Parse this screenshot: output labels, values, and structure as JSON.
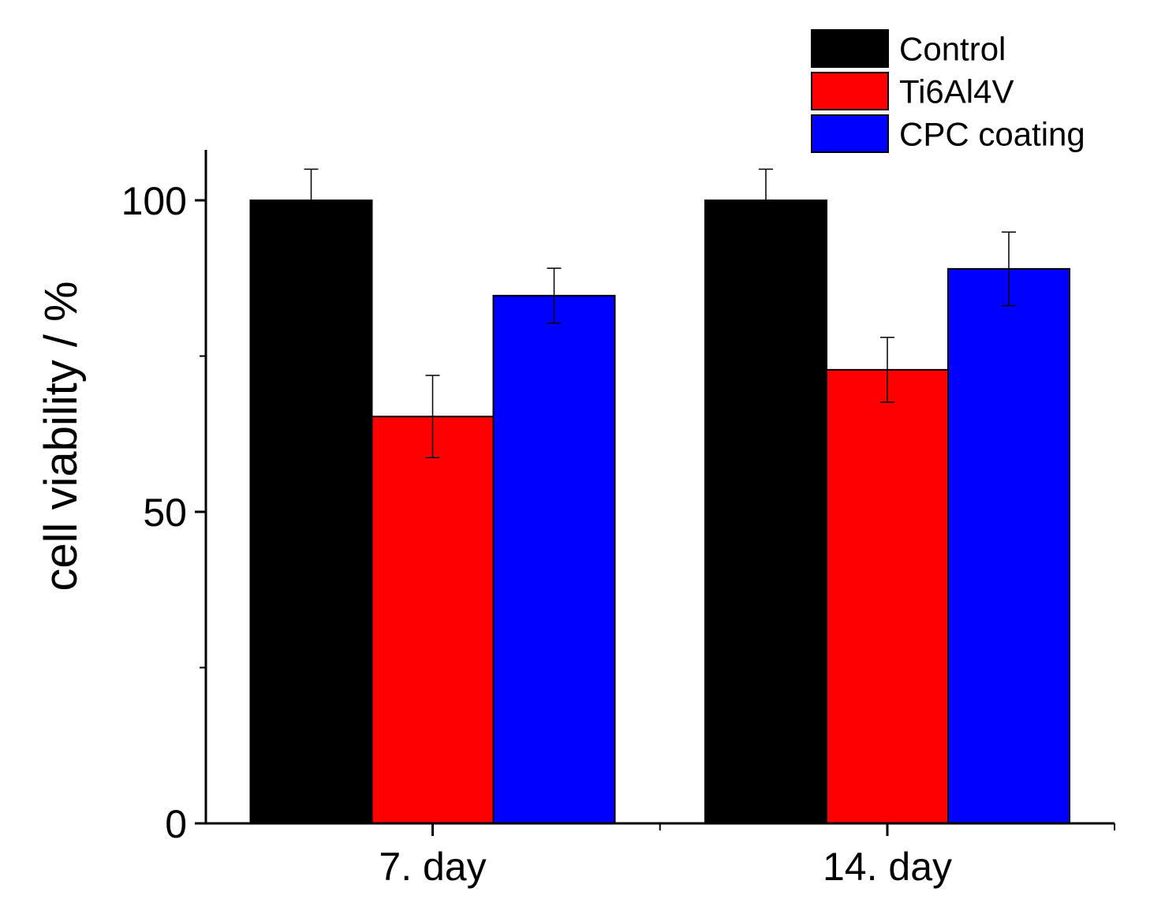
{
  "chart_data": {
    "type": "bar",
    "title": "",
    "xlabel": "",
    "ylabel": "cell viability / %",
    "categories": [
      "7. day",
      "14. day"
    ],
    "series": [
      {
        "name": "Control",
        "color": "#000000",
        "values": [
          100,
          100
        ],
        "errors": [
          5,
          5
        ]
      },
      {
        "name": "Ti6Al4V",
        "color": "#ff0000",
        "values": [
          65.3,
          72.8
        ],
        "errors": [
          6.6,
          5.2
        ]
      },
      {
        "name": "CPC coating",
        "color": "#0000ff",
        "values": [
          84.7,
          89
        ],
        "errors": [
          4.4,
          5.9
        ]
      }
    ],
    "ylim": [
      0,
      108
    ],
    "yticks_major": [
      0,
      50,
      100
    ],
    "yticks_minor": [
      25,
      75
    ],
    "ytick_labels": [
      "0",
      "50",
      "100"
    ],
    "grid": false,
    "legend_position": "top-right"
  }
}
